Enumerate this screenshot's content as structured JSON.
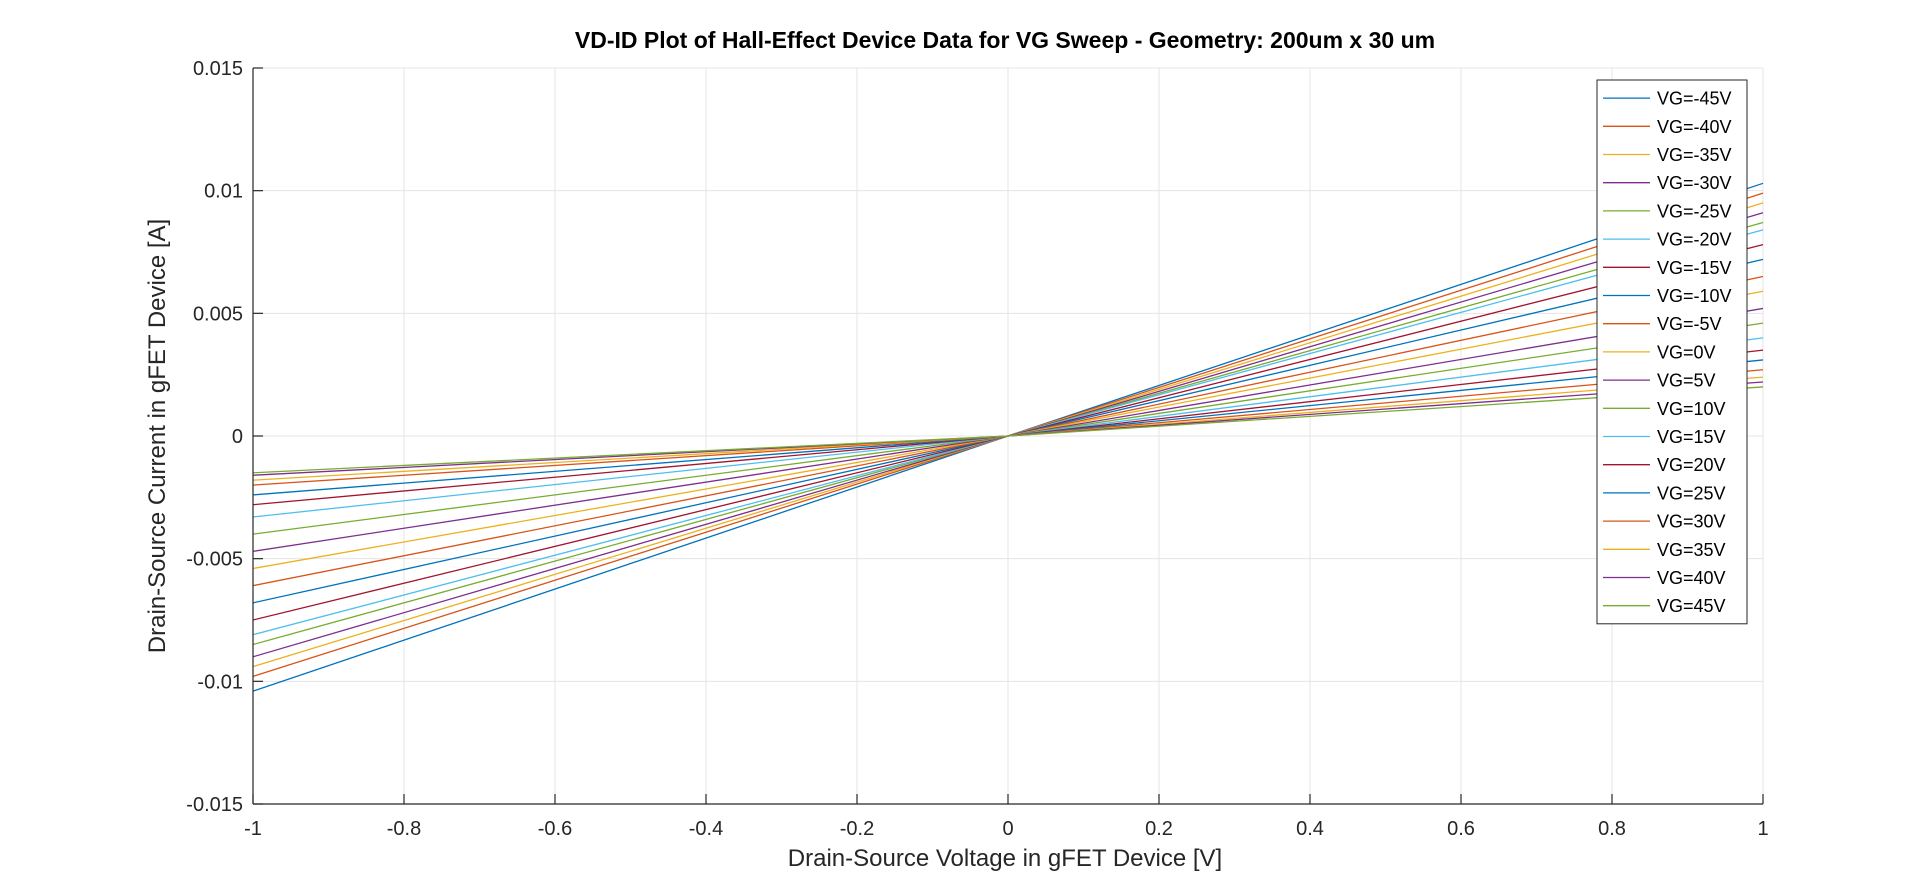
{
  "colors": {
    "background": "#ffffff",
    "axis": "#262626",
    "grid": "#e5e5e5",
    "palette": [
      "#0072BD",
      "#D95319",
      "#EDB120",
      "#7E2F8E",
      "#77AC30",
      "#4DBEEE",
      "#A2142F"
    ]
  },
  "chart_data": {
    "type": "line",
    "title": "VD-ID Plot of Hall-Effect Device Data for VG Sweep - Geometry: 200um x 30 um",
    "xlabel": "Drain-Source Voltage in gFET Device [V]",
    "ylabel": "Drain-Source Current in gFET Device [A]",
    "xlim": [
      -1,
      1
    ],
    "ylim": [
      -0.015,
      0.015
    ],
    "xticks": [
      -1,
      -0.8,
      -0.6,
      -0.4,
      -0.2,
      0,
      0.2,
      0.4,
      0.6,
      0.8,
      1
    ],
    "xtick_labels": [
      "-1",
      "-0.8",
      "-0.6",
      "-0.4",
      "-0.2",
      "0",
      "0.2",
      "0.4",
      "0.6",
      "0.8",
      "1"
    ],
    "yticks": [
      -0.015,
      -0.01,
      -0.005,
      0,
      0.005,
      0.01,
      0.015
    ],
    "ytick_labels": [
      "-0.015",
      "-0.01",
      "-0.005",
      "0",
      "0.005",
      "0.01",
      "0.015"
    ],
    "grid": true,
    "legend_position": "top-right",
    "x": [
      -1,
      0,
      1
    ],
    "series": [
      {
        "name": "VG=-45V",
        "values": [
          -0.0104,
          0,
          0.0103
        ]
      },
      {
        "name": "VG=-40V",
        "values": [
          -0.0098,
          0,
          0.0099
        ]
      },
      {
        "name": "VG=-35V",
        "values": [
          -0.0094,
          0,
          0.0095
        ]
      },
      {
        "name": "VG=-30V",
        "values": [
          -0.009,
          0,
          0.0091
        ]
      },
      {
        "name": "VG=-25V",
        "values": [
          -0.0085,
          0,
          0.0087
        ]
      },
      {
        "name": "VG=-20V",
        "values": [
          -0.0081,
          0,
          0.0084
        ]
      },
      {
        "name": "VG=-15V",
        "values": [
          -0.0075,
          0,
          0.0078
        ]
      },
      {
        "name": "VG=-10V",
        "values": [
          -0.0068,
          0,
          0.0072
        ]
      },
      {
        "name": "VG=-5V",
        "values": [
          -0.0061,
          0,
          0.0065
        ]
      },
      {
        "name": "VG=0V",
        "values": [
          -0.0054,
          0,
          0.0059
        ]
      },
      {
        "name": "VG=5V",
        "values": [
          -0.0047,
          0,
          0.0052
        ]
      },
      {
        "name": "VG=10V",
        "values": [
          -0.004,
          0,
          0.0046
        ]
      },
      {
        "name": "VG=15V",
        "values": [
          -0.0033,
          0,
          0.004
        ]
      },
      {
        "name": "VG=20V",
        "values": [
          -0.0028,
          0,
          0.0035
        ]
      },
      {
        "name": "VG=25V",
        "values": [
          -0.0024,
          0,
          0.0031
        ]
      },
      {
        "name": "VG=30V",
        "values": [
          -0.002,
          0,
          0.0027
        ]
      },
      {
        "name": "VG=35V",
        "values": [
          -0.0018,
          0,
          0.0024
        ]
      },
      {
        "name": "VG=40V",
        "values": [
          -0.0016,
          0,
          0.0022
        ]
      },
      {
        "name": "VG=45V",
        "values": [
          -0.0015,
          0,
          0.002
        ]
      }
    ]
  }
}
